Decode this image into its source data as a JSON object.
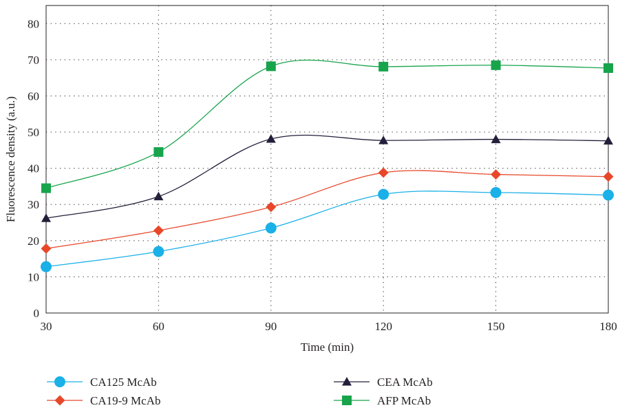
{
  "chart_data": {
    "type": "line",
    "xlabel": "Time (min)",
    "ylabel": "Fluorescence density (a.u.)",
    "x": [
      30,
      60,
      90,
      120,
      150,
      180
    ],
    "xlim": [
      30,
      180
    ],
    "ylim": [
      0,
      85
    ],
    "xticks": [
      "30",
      "60",
      "90",
      "120",
      "150",
      "180"
    ],
    "yticks": [
      "0",
      "10",
      "20",
      "30",
      "40",
      "50",
      "60",
      "70",
      "80"
    ],
    "grid": true,
    "legend_position": "bottom",
    "series": [
      {
        "name": "CA125 McAb",
        "color": "#1ab0e8",
        "marker": "circle",
        "values": [
          12.8,
          17.0,
          23.5,
          32.8,
          33.3,
          32.6
        ]
      },
      {
        "name": "CA19-9 McAb",
        "color": "#e8472a",
        "marker": "diamond",
        "values": [
          17.8,
          22.8,
          29.3,
          38.8,
          38.3,
          37.7
        ]
      },
      {
        "name": "CEA McAb",
        "color": "#231f3a",
        "marker": "triangle",
        "values": [
          26.2,
          32.2,
          48.1,
          47.7,
          48.0,
          47.6
        ]
      },
      {
        "name": "AFP McAb",
        "color": "#17a44b",
        "marker": "square",
        "values": [
          34.5,
          44.5,
          68.2,
          68.1,
          68.5,
          67.7
        ]
      }
    ]
  }
}
